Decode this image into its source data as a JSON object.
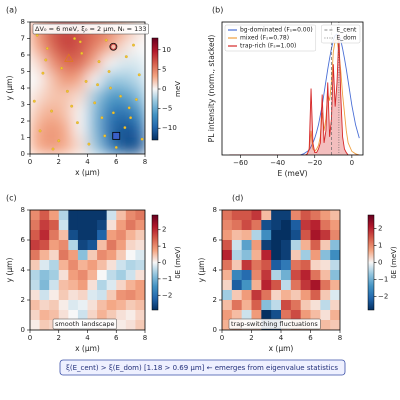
{
  "chart_data": [
    {
      "type": "heatmap",
      "panel_label": "(a)",
      "annotation": "ΔV₀ = 6 meV, ξ₀ = 2 μm, Nₜ = 133",
      "xlabel": "x (μm)",
      "ylabel": "y (μm)",
      "xlim": [
        0,
        8
      ],
      "ylim": [
        0,
        8
      ],
      "xticks": [
        0,
        2,
        4,
        6,
        8
      ],
      "yticks": [
        0,
        1,
        2,
        3,
        4,
        5,
        6,
        7,
        8
      ],
      "colormap": "RdBu_r",
      "smooth": true,
      "zlim": [
        -13,
        13
      ],
      "colorbar_label": "meV",
      "colorbar_ticks": [
        {
          "value": -10,
          "label": "−10"
        },
        {
          "value": -5,
          "label": "−5"
        },
        0,
        5,
        10
      ],
      "z": [
        [
          4,
          7,
          8,
          7,
          6,
          5,
          3,
          1
        ],
        [
          3,
          6,
          8,
          7,
          5,
          3,
          1,
          0
        ],
        [
          1,
          4,
          6,
          6,
          3,
          0,
          -1,
          -1
        ],
        [
          0,
          2,
          4,
          3,
          0,
          -3,
          -3,
          -2
        ],
        [
          1,
          2,
          2,
          1,
          -3,
          -6,
          -6,
          -4
        ],
        [
          2,
          3,
          2,
          0,
          -4,
          -8,
          -9,
          -7
        ],
        [
          3,
          4,
          3,
          0,
          -4,
          -9,
          -11,
          -10
        ],
        [
          3,
          4,
          3,
          1,
          -3,
          -8,
          -11,
          -11
        ]
      ],
      "points": {
        "color": "#f2c230",
        "x": [
          0.5,
          1.2,
          1.8,
          0.9,
          2.2,
          3.1,
          3.6,
          4.2,
          4.8,
          5.3,
          6.1,
          6.7,
          7.2,
          7.6,
          0.3,
          1.5,
          2.6,
          3.9,
          4.5,
          5.0,
          5.6,
          6.3,
          6.9,
          7.4,
          0.7,
          2.0,
          3.3,
          4.1,
          5.8,
          6.6,
          7.8,
          1.1,
          2.9,
          4.7,
          5.2,
          6.0,
          7.0,
          1.6,
          3.5,
          5.5
        ],
        "y": [
          7.2,
          6.4,
          7.6,
          4.9,
          5.2,
          7.0,
          6.1,
          7.4,
          5.6,
          6.9,
          7.5,
          5.9,
          6.6,
          4.8,
          3.2,
          2.6,
          3.8,
          4.4,
          3.1,
          2.2,
          4.0,
          3.5,
          2.8,
          3.3,
          1.4,
          0.8,
          1.9,
          0.6,
          2.5,
          1.6,
          0.9,
          5.7,
          2.9,
          4.2,
          1.1,
          0.4,
          2.2,
          0.3,
          6.8,
          5.0
        ]
      },
      "markers": [
        {
          "shape": "triangle",
          "x": 2.7,
          "y": 5.8,
          "color": "#e07b1a"
        },
        {
          "shape": "circle",
          "x": 5.8,
          "y": 6.5,
          "color": "#c0282b"
        },
        {
          "shape": "square",
          "x": 6.0,
          "y": 1.1,
          "color": "#3a5fc8"
        }
      ]
    },
    {
      "type": "line",
      "panel_label": "(b)",
      "xlabel": "E (meV)",
      "ylabel": "PL intensity (norm., stacked)",
      "xlim": [
        -70,
        6
      ],
      "ylim": [
        0,
        1.1
      ],
      "xticks": [
        {
          "value": -60,
          "label": "−60"
        },
        {
          "value": -40,
          "label": "−40"
        },
        {
          "value": -20,
          "label": "−20"
        },
        0
      ],
      "legend": "upper left",
      "x": [
        -66,
        -60,
        -50,
        -40,
        -35,
        -30,
        -28,
        -26,
        -25,
        -24,
        -23,
        -22,
        -21,
        -20,
        -19,
        -18,
        -17,
        -16,
        -15,
        -14,
        -13,
        -12,
        -11,
        -10,
        -9,
        -8,
        -7,
        -6,
        -5,
        -4,
        -3,
        -2,
        0,
        2,
        4
      ],
      "series": [
        {
          "name": "bg-dominated (Fₛ=0.00)",
          "color": "#4a6fd6",
          "values": [
            0,
            0,
            0,
            0,
            0,
            0,
            0,
            0.01,
            0.02,
            0.03,
            0.04,
            0.07,
            0.1,
            0.14,
            0.19,
            0.25,
            0.33,
            0.41,
            0.51,
            0.61,
            0.71,
            0.8,
            0.88,
            0.95,
            0.99,
            1,
            0.99,
            0.95,
            0.88,
            0.8,
            0.71,
            0.61,
            0.41,
            0.25,
            0.14
          ]
        },
        {
          "name": "mixed (Fₛ=0.78)",
          "color": "#f0a040",
          "values": [
            0,
            0,
            0,
            0,
            0,
            0,
            0,
            0,
            0,
            0.01,
            0.05,
            0.2,
            0.05,
            0.03,
            0.05,
            0.08,
            0.15,
            0.35,
            0.2,
            0.3,
            0.5,
            0.45,
            0.6,
            0.85,
            0.95,
            0.95,
            0.85,
            0.7,
            0.5,
            0.35,
            0.2,
            0.1,
            0.03,
            0.01,
            0
          ]
        },
        {
          "name": "trap-rich (Fₛ=1.00)",
          "color": "#d62728",
          "fill": true,
          "values": [
            0,
            0,
            0,
            0,
            0,
            0,
            0,
            0,
            0,
            0.01,
            0.05,
            0.55,
            0.1,
            0.02,
            0.02,
            0.05,
            0.1,
            0.5,
            0.1,
            0.2,
            0.6,
            0.15,
            0.3,
            0.75,
            0.4,
            0.6,
            1.0,
            0.5,
            0.15,
            0.05,
            0.02,
            0,
            0,
            0,
            0
          ]
        }
      ],
      "vlines": [
        {
          "name": "E_cent",
          "value": -11,
          "style": "dashed"
        },
        {
          "name": "E_dom",
          "value": -7,
          "style": "dotted"
        }
      ],
      "vline_legend": "upper right"
    },
    {
      "type": "heatmap",
      "panel_label": "(c)",
      "annotation": "smooth landscape",
      "xlabel": "x (μm)",
      "ylabel": "y (μm)",
      "xlim": [
        0,
        8
      ],
      "ylim": [
        0,
        8
      ],
      "xticks": [
        0,
        2,
        4,
        6,
        8
      ],
      "yticks": [
        0,
        2,
        4,
        6,
        8
      ],
      "colormap": "RdBu_r",
      "smooth": false,
      "zlim": [
        -2.9,
        2.9
      ],
      "colorbar_label": "δE (meV)",
      "colorbar_ticks": [
        {
          "value": -2,
          "label": "−2"
        },
        {
          "value": -1,
          "label": "−1"
        },
        0,
        1,
        2
      ],
      "z": [
        [
          1.0,
          1.5,
          0.8,
          -0.5,
          -2.8,
          -2.8,
          -2.8,
          -2.8,
          -0.3,
          0.5,
          1.0,
          1.2
        ],
        [
          1.2,
          1.8,
          1.5,
          -0.3,
          -2.8,
          -2.8,
          -2.8,
          -2.6,
          0.2,
          0.8,
          1.2,
          0.9
        ],
        [
          1.5,
          2.0,
          1.2,
          0.5,
          -2.5,
          -2.8,
          -2.8,
          -2.2,
          0.8,
          1.0,
          0.6,
          0.4
        ],
        [
          1.8,
          1.6,
          0.8,
          1.0,
          -0.5,
          -2.6,
          -2.4,
          0.5,
          1.2,
          0.8,
          0.3,
          0.2
        ],
        [
          1.2,
          0.6,
          0.3,
          1.2,
          0.8,
          -0.8,
          0.4,
          1.0,
          0.8,
          0.4,
          0.0,
          -0.2
        ],
        [
          0.4,
          -0.2,
          -0.5,
          0.6,
          1.0,
          0.6,
          0.8,
          0.5,
          0.2,
          -0.3,
          -0.5,
          -0.4
        ],
        [
          -0.5,
          -0.8,
          -0.6,
          0.2,
          0.8,
          1.0,
          0.6,
          0.0,
          -0.4,
          -0.6,
          -0.3,
          0.2
        ],
        [
          -0.4,
          -0.9,
          -0.3,
          0.5,
          0.6,
          0.8,
          0.2,
          -0.5,
          -0.2,
          0.3,
          0.6,
          0.8
        ],
        [
          0.2,
          -0.3,
          0.1,
          0.4,
          0.2,
          0.3,
          -0.2,
          -0.3,
          0.4,
          0.9,
          1.0,
          0.8
        ],
        [
          0.5,
          0.3,
          0.4,
          0.1,
          -0.2,
          -0.1,
          0.2,
          0.5,
          0.7,
          0.6,
          0.4,
          0.5
        ],
        [
          0.3,
          0.6,
          0.5,
          0.2,
          0.0,
          -0.3,
          0.3,
          0.6,
          0.4,
          0.2,
          0.1,
          0.3
        ],
        [
          0.1,
          0.4,
          0.3,
          0.2,
          0.1,
          0.0,
          0.2,
          0.3,
          0.2,
          0.1,
          0.2,
          0.4
        ]
      ]
    },
    {
      "type": "heatmap",
      "panel_label": "(d)",
      "annotation": "trap-switching fluctuations",
      "xlabel": "x (μm)",
      "ylabel": "y (μm)",
      "xlim": [
        0,
        8
      ],
      "ylim": [
        0,
        8
      ],
      "xticks": [
        0,
        2,
        4,
        6,
        8
      ],
      "yticks": [
        0,
        2,
        4,
        6,
        8
      ],
      "colormap": "RdBu_r",
      "smooth": false,
      "zlim": [
        -2.8,
        2.8
      ],
      "colorbar_label": "δE (meV)",
      "colorbar_ticks": [
        {
          "value": -2,
          "label": "−2"
        },
        {
          "value": -1,
          "label": "−1"
        },
        0,
        1,
        2
      ],
      "z": [
        [
          1.2,
          1.5,
          1.5,
          1.8,
          0.5,
          -2.6,
          -2.6,
          1.0,
          1.5,
          1.2,
          0.8,
          0.5
        ],
        [
          1.0,
          1.2,
          1.6,
          1.2,
          -2.4,
          -2.6,
          -2.8,
          -2.2,
          1.8,
          2.0,
          1.2,
          0.8
        ],
        [
          0.8,
          0.5,
          0.6,
          -0.5,
          -1.5,
          -2.8,
          -2.8,
          -2.4,
          1.5,
          2.2,
          1.8,
          1.0
        ],
        [
          1.5,
          -0.3,
          -1.2,
          0.8,
          -2.6,
          -2.8,
          -2.6,
          -0.5,
          0.6,
          1.4,
          0.4,
          -0.8
        ],
        [
          2.0,
          -0.5,
          -0.8,
          0.6,
          2.0,
          -2.8,
          -2.6,
          0.4,
          -0.6,
          0.8,
          -0.8,
          -1.5
        ],
        [
          1.2,
          0.4,
          1.8,
          1.2,
          1.5,
          -2.2,
          -1.8,
          1.2,
          1.4,
          0.3,
          0.2,
          -0.4
        ],
        [
          0.6,
          -1.6,
          -2.0,
          1.0,
          1.8,
          -0.5,
          -1.0,
          1.6,
          2.0,
          1.2,
          0.5,
          -0.8
        ],
        [
          0.3,
          -2.2,
          -1.4,
          0.6,
          2.0,
          1.5,
          -0.4,
          1.2,
          1.8,
          2.2,
          1.2,
          0.6
        ],
        [
          -0.6,
          0.4,
          0.8,
          1.8,
          1.2,
          0.3,
          0.6,
          0.4,
          0.8,
          1.4,
          0.4,
          -0.2
        ],
        [
          0.5,
          1.2,
          0.6,
          1.4,
          -0.8,
          -0.4,
          1.6,
          1.2,
          0.4,
          0.2,
          -0.4,
          0.3
        ],
        [
          0.8,
          0.5,
          -0.3,
          0.8,
          -2.8,
          -2.4,
          1.2,
          1.6,
          0.8,
          0.5,
          0.2,
          0.6
        ],
        [
          0.6,
          0.8,
          0.4,
          0.5,
          -2.8,
          -2.6,
          0.4,
          0.8,
          0.6,
          0.3,
          0.5,
          0.4
        ]
      ]
    }
  ],
  "note": "ξ(E_cent) > ξ(E_dom)  [1.18 > 0.69 μm]  ←  emerges from eigenvalue statistics"
}
